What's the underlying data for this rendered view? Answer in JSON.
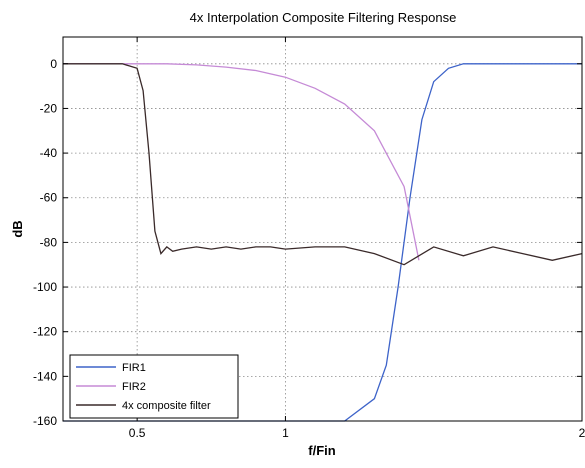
{
  "chart_data": {
    "type": "line",
    "title": "4x Interpolation Composite Filtering Response",
    "xlabel": "f/Fin",
    "ylabel": "dB",
    "x_axis": {
      "scale": "linear",
      "range": [
        0.25,
        2
      ],
      "ticks": [
        0.5,
        1,
        2
      ],
      "tick_labels": [
        "0.5",
        "1",
        "2"
      ]
    },
    "y_axis": {
      "scale": "linear",
      "range": [
        -160,
        12
      ],
      "ticks": [
        0,
        -20,
        -40,
        -60,
        -80,
        -100,
        -120,
        -140,
        -160
      ],
      "tick_labels": [
        "0",
        "-20",
        "-40",
        "-60",
        "-80",
        "-100",
        "-120",
        "-140",
        "-160"
      ]
    },
    "grid": true,
    "legend_position": "bottom-left",
    "series": [
      {
        "name": "FIR1",
        "color": "#3d63c9",
        "x": [
          0.25,
          1.2,
          1.3,
          1.34,
          1.38,
          1.42,
          1.46,
          1.5,
          1.55,
          1.6,
          1.7,
          1.85,
          2.0
        ],
        "y": [
          -160,
          -160,
          -150,
          -135,
          -100,
          -60,
          -25,
          -8,
          -2,
          0,
          0,
          0,
          0
        ]
      },
      {
        "name": "FIR2",
        "color": "#c58ad6",
        "x": [
          0.25,
          0.4,
          0.5,
          0.6,
          0.7,
          0.8,
          0.9,
          1.0,
          1.1,
          1.2,
          1.3,
          1.4,
          1.45
        ],
        "y": [
          0,
          0,
          0,
          0,
          -0.5,
          -1.5,
          -3,
          -6,
          -11,
          -18,
          -30,
          -55,
          -88
        ]
      },
      {
        "name": "4x composite filter",
        "color": "#3a2a2a",
        "x": [
          0.25,
          0.3,
          0.35,
          0.4,
          0.45,
          0.5,
          0.52,
          0.54,
          0.56,
          0.58,
          0.6,
          0.62,
          0.65,
          0.7,
          0.75,
          0.8,
          0.85,
          0.9,
          0.95,
          1.0,
          1.1,
          1.2,
          1.3,
          1.4,
          1.5,
          1.6,
          1.7,
          1.8,
          1.9,
          2.0
        ],
        "y": [
          0,
          0,
          0,
          0,
          0,
          -2,
          -12,
          -40,
          -75,
          -85,
          -82,
          -84,
          -83,
          -82,
          -83,
          -82,
          -83,
          -82,
          -82,
          -83,
          -82,
          -82,
          -85,
          -90,
          -82,
          -86,
          -82,
          -85,
          -88,
          -85
        ]
      }
    ],
    "annotations": []
  }
}
